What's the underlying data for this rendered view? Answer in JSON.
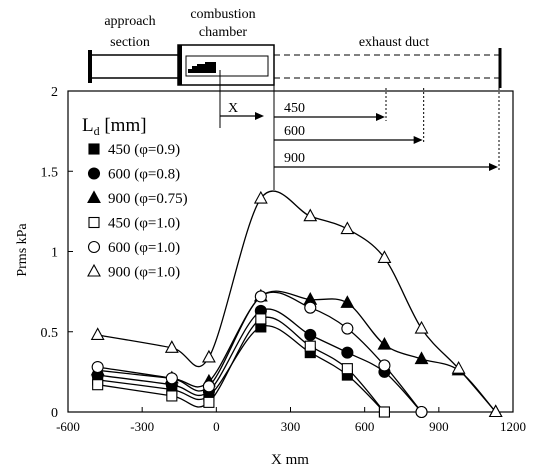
{
  "chart_data": {
    "type": "line",
    "xlabel": "X mm",
    "ylabel": "Prms kPa",
    "xlim": [
      -600,
      1200
    ],
    "ylim": [
      0,
      2
    ],
    "xticks": [
      -600,
      -300,
      0,
      300,
      600,
      900,
      1200
    ],
    "yticks": [
      0,
      0.5,
      1,
      1.5,
      2
    ],
    "xtick_labels": [
      "-600",
      "-300",
      "0",
      "300",
      "600",
      "900",
      "1200"
    ],
    "ytick_labels": [
      "0",
      "0.5",
      "1",
      "1.5",
      "2"
    ],
    "grid": false,
    "legend_title": "Ld [mm]",
    "legend_title_main": "L",
    "legend_title_sub": "d",
    "legend_title_unit": " [mm]",
    "legend_position": "top-left",
    "series": [
      {
        "name": "450 (φ=0.9)",
        "marker": "square",
        "filled": true,
        "points": [
          [
            -480,
            0.2
          ],
          [
            -180,
            0.14
          ],
          [
            -30,
            0.1
          ],
          [
            180,
            0.53
          ],
          [
            380,
            0.37
          ],
          [
            530,
            0.23
          ],
          [
            680,
            0.0
          ]
        ]
      },
      {
        "name": "600 (φ=0.8)",
        "marker": "circle",
        "filled": true,
        "points": [
          [
            -480,
            0.23
          ],
          [
            -180,
            0.17
          ],
          [
            -30,
            0.13
          ],
          [
            180,
            0.63
          ],
          [
            380,
            0.48
          ],
          [
            530,
            0.37
          ],
          [
            680,
            0.25
          ],
          [
            830,
            0.0
          ]
        ]
      },
      {
        "name": "900 (φ=0.75)",
        "marker": "triangle",
        "filled": true,
        "points": [
          [
            -480,
            0.26
          ],
          [
            -180,
            0.21
          ],
          [
            -30,
            0.19
          ],
          [
            180,
            0.72
          ],
          [
            380,
            0.7
          ],
          [
            530,
            0.68
          ],
          [
            680,
            0.42
          ],
          [
            830,
            0.33
          ],
          [
            980,
            0.26
          ],
          [
            1130,
            0.0
          ]
        ]
      },
      {
        "name": "450 (φ=1.0)",
        "marker": "square",
        "filled": false,
        "points": [
          [
            -480,
            0.17
          ],
          [
            -180,
            0.1
          ],
          [
            -30,
            0.06
          ],
          [
            180,
            0.58
          ],
          [
            380,
            0.41
          ],
          [
            530,
            0.27
          ],
          [
            680,
            0.0
          ]
        ]
      },
      {
        "name": "600 (φ=1.0)",
        "marker": "circle",
        "filled": false,
        "points": [
          [
            -480,
            0.28
          ],
          [
            -180,
            0.21
          ],
          [
            -30,
            0.16
          ],
          [
            180,
            0.72
          ],
          [
            380,
            0.65
          ],
          [
            530,
            0.52
          ],
          [
            680,
            0.29
          ],
          [
            830,
            0.0
          ]
        ]
      },
      {
        "name": "900 (φ=1.0)",
        "marker": "triangle",
        "filled": false,
        "points": [
          [
            -480,
            0.48
          ],
          [
            -180,
            0.4
          ],
          [
            -30,
            0.34
          ],
          [
            180,
            1.33
          ],
          [
            380,
            1.22
          ],
          [
            530,
            1.14
          ],
          [
            680,
            0.96
          ],
          [
            830,
            0.52
          ],
          [
            980,
            0.27
          ],
          [
            1130,
            0.0
          ]
        ]
      }
    ]
  },
  "schematic": {
    "approach_label_1": "approach",
    "approach_label_2": "section",
    "combustion_label_1": "combustion",
    "combustion_label_2": "chamber",
    "exhaust_label": "exhaust duct",
    "x_arrow_label": "X",
    "duct_lengths": [
      {
        "label": "450",
        "value": 450
      },
      {
        "label": "600",
        "value": 600
      },
      {
        "label": "900",
        "value": 900
      }
    ]
  }
}
